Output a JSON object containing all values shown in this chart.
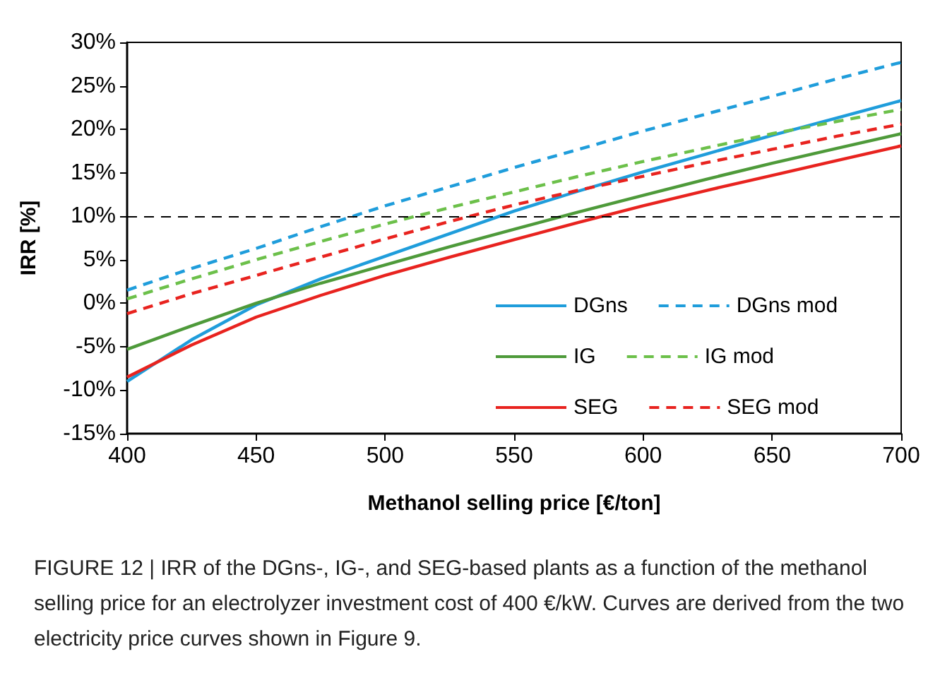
{
  "chart_data": {
    "type": "line",
    "xlabel": "Methanol selling price [€/ton]",
    "ylabel": "IRR [%]",
    "x": [
      400,
      425,
      450,
      475,
      500,
      525,
      550,
      575,
      600,
      625,
      650,
      675,
      700
    ],
    "series": [
      {
        "name": "DGns",
        "color": "#1f9ddb",
        "line_style": "solid",
        "values": [
          -9,
          -4.2,
          -0.2,
          2.8,
          5.4,
          8,
          10.6,
          12.9,
          15.1,
          17.2,
          19.3,
          21.3,
          23.3
        ]
      },
      {
        "name": "DGns mod",
        "color": "#1f9ddb",
        "line_style": "dashed",
        "values": [
          1.5,
          4.0,
          6.3,
          8.8,
          11.2,
          13.4,
          15.6,
          17.7,
          19.8,
          21.8,
          23.8,
          25.8,
          27.7
        ]
      },
      {
        "name": "IG",
        "color": "#4e9a3a",
        "line_style": "solid",
        "values": [
          -5.3,
          -2.6,
          0,
          2.3,
          4.4,
          6.5,
          8.5,
          10.5,
          12.4,
          14.3,
          16.1,
          17.8,
          19.5
        ]
      },
      {
        "name": "IG mod",
        "color": "#6cc04a",
        "line_style": "dashed",
        "values": [
          0.5,
          2.8,
          5.0,
          7.1,
          9.1,
          11.0,
          12.8,
          14.6,
          16.3,
          17.9,
          19.5,
          20.9,
          22.3
        ]
      },
      {
        "name": "SEG",
        "color": "#e8231f",
        "line_style": "solid",
        "values": [
          -8.5,
          -4.8,
          -1.6,
          0.9,
          3.2,
          5.3,
          7.3,
          9.3,
          11.2,
          13.0,
          14.7,
          16.4,
          18.1
        ]
      },
      {
        "name": "SEG mod",
        "color": "#e8231f",
        "line_style": "dashed",
        "values": [
          -1.2,
          1.1,
          3.2,
          5.3,
          7.4,
          9.4,
          11.3,
          13.0,
          14.6,
          16.2,
          17.7,
          19.2,
          20.6
        ]
      }
    ],
    "xlim": [
      400,
      700
    ],
    "xticks": [
      400,
      450,
      500,
      550,
      600,
      650,
      700
    ],
    "ylim": [
      -15,
      30
    ],
    "yticks": [
      {
        "value": -15,
        "label": "-15%"
      },
      {
        "value": -10,
        "label": "-10%"
      },
      {
        "value": -5,
        "label": "-5%"
      },
      {
        "value": 0,
        "label": "0%"
      },
      {
        "value": 5,
        "label": "5%"
      },
      {
        "value": 10,
        "label": "10%"
      },
      {
        "value": 15,
        "label": "15%"
      },
      {
        "value": 20,
        "label": "20%"
      },
      {
        "value": 25,
        "label": "25%"
      },
      {
        "value": 30,
        "label": "30%"
      }
    ],
    "ref_lines": [
      {
        "axis": "y",
        "value": 10,
        "label": null,
        "color": "#000000",
        "line_style": "dashed"
      }
    ],
    "grid": false,
    "legend": "bottom right",
    "marker": "none",
    "annotations": [
      "FIGURE 12 | IRR of the DGns-, IG-, and SEG-based plants as a function of the methanol selling price for an electrolyzer investment cost of 400 €/kW. Curves are derived from the two electricity price curves shown in Figure 9."
    ]
  }
}
